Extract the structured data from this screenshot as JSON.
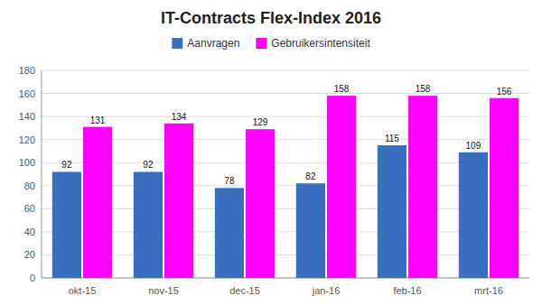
{
  "chart_data": {
    "type": "bar",
    "title": "IT-Contracts Flex-Index 2016",
    "categories": [
      "okt-15",
      "nov-15",
      "dec-15",
      "jan-16",
      "feb-16",
      "mrt-16"
    ],
    "series": [
      {
        "name": "Aanvragen",
        "color": "#3A6FBF",
        "values": [
          92,
          92,
          78,
          82,
          115,
          109
        ]
      },
      {
        "name": "Gebruikersintensiteit",
        "color": "#FF00FF",
        "values": [
          131,
          134,
          129,
          158,
          158,
          156
        ]
      }
    ],
    "ylim": [
      0,
      180
    ],
    "yticks": [
      0,
      20,
      40,
      60,
      80,
      100,
      120,
      140,
      160,
      180
    ],
    "grid": true,
    "legend": "top",
    "data_labels": true
  }
}
